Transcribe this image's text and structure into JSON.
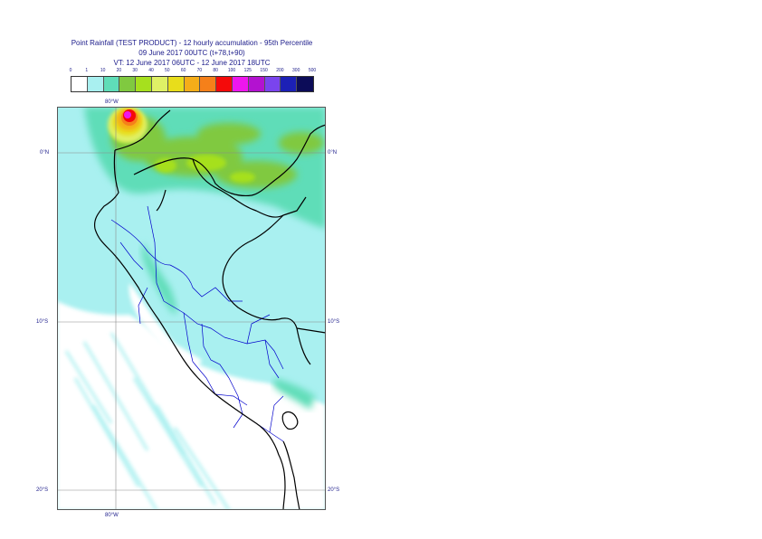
{
  "title": {
    "line1": "Point Rainfall (TEST PRODUCT) - 12 hourly accumulation - 95th Percentile",
    "line2": "09 June 2017 00UTC (t+78,t+90)",
    "line3": "VT: 12 June 2017 06UTC - 12 June 2017 18UTC"
  },
  "legend": {
    "labels": [
      "0",
      "1",
      "10",
      "20",
      "30",
      "40",
      "50",
      "60",
      "70",
      "80",
      "100",
      "125",
      "150",
      "200",
      "300",
      "500"
    ],
    "colors": [
      "#ffffff",
      "#a9f0f0",
      "#5fddb8",
      "#80c940",
      "#a6e01e",
      "#dff066",
      "#e8dd1b",
      "#f5ad19",
      "#f5801a",
      "#f50a0a",
      "#ee16ee",
      "#b312d0",
      "#7a44ee",
      "#1c20b6",
      "#0c0c58"
    ]
  },
  "axes": {
    "lon_top": "80°W",
    "lon_bottom": "80°W",
    "lat_0_right": "0°N",
    "lat_0_left": "0°N",
    "lat_10_right": "10°S",
    "lat_10_left": "10°S",
    "lat_20_right": "20°S",
    "lat_20_left": "20°S"
  },
  "colors": {
    "ocean_wet": "#a9f0f0",
    "land_dry": "#ffffff",
    "coast": "#000000",
    "borders": "#0000cc",
    "gridline": "#888888",
    "text": "#1b1b8a"
  }
}
